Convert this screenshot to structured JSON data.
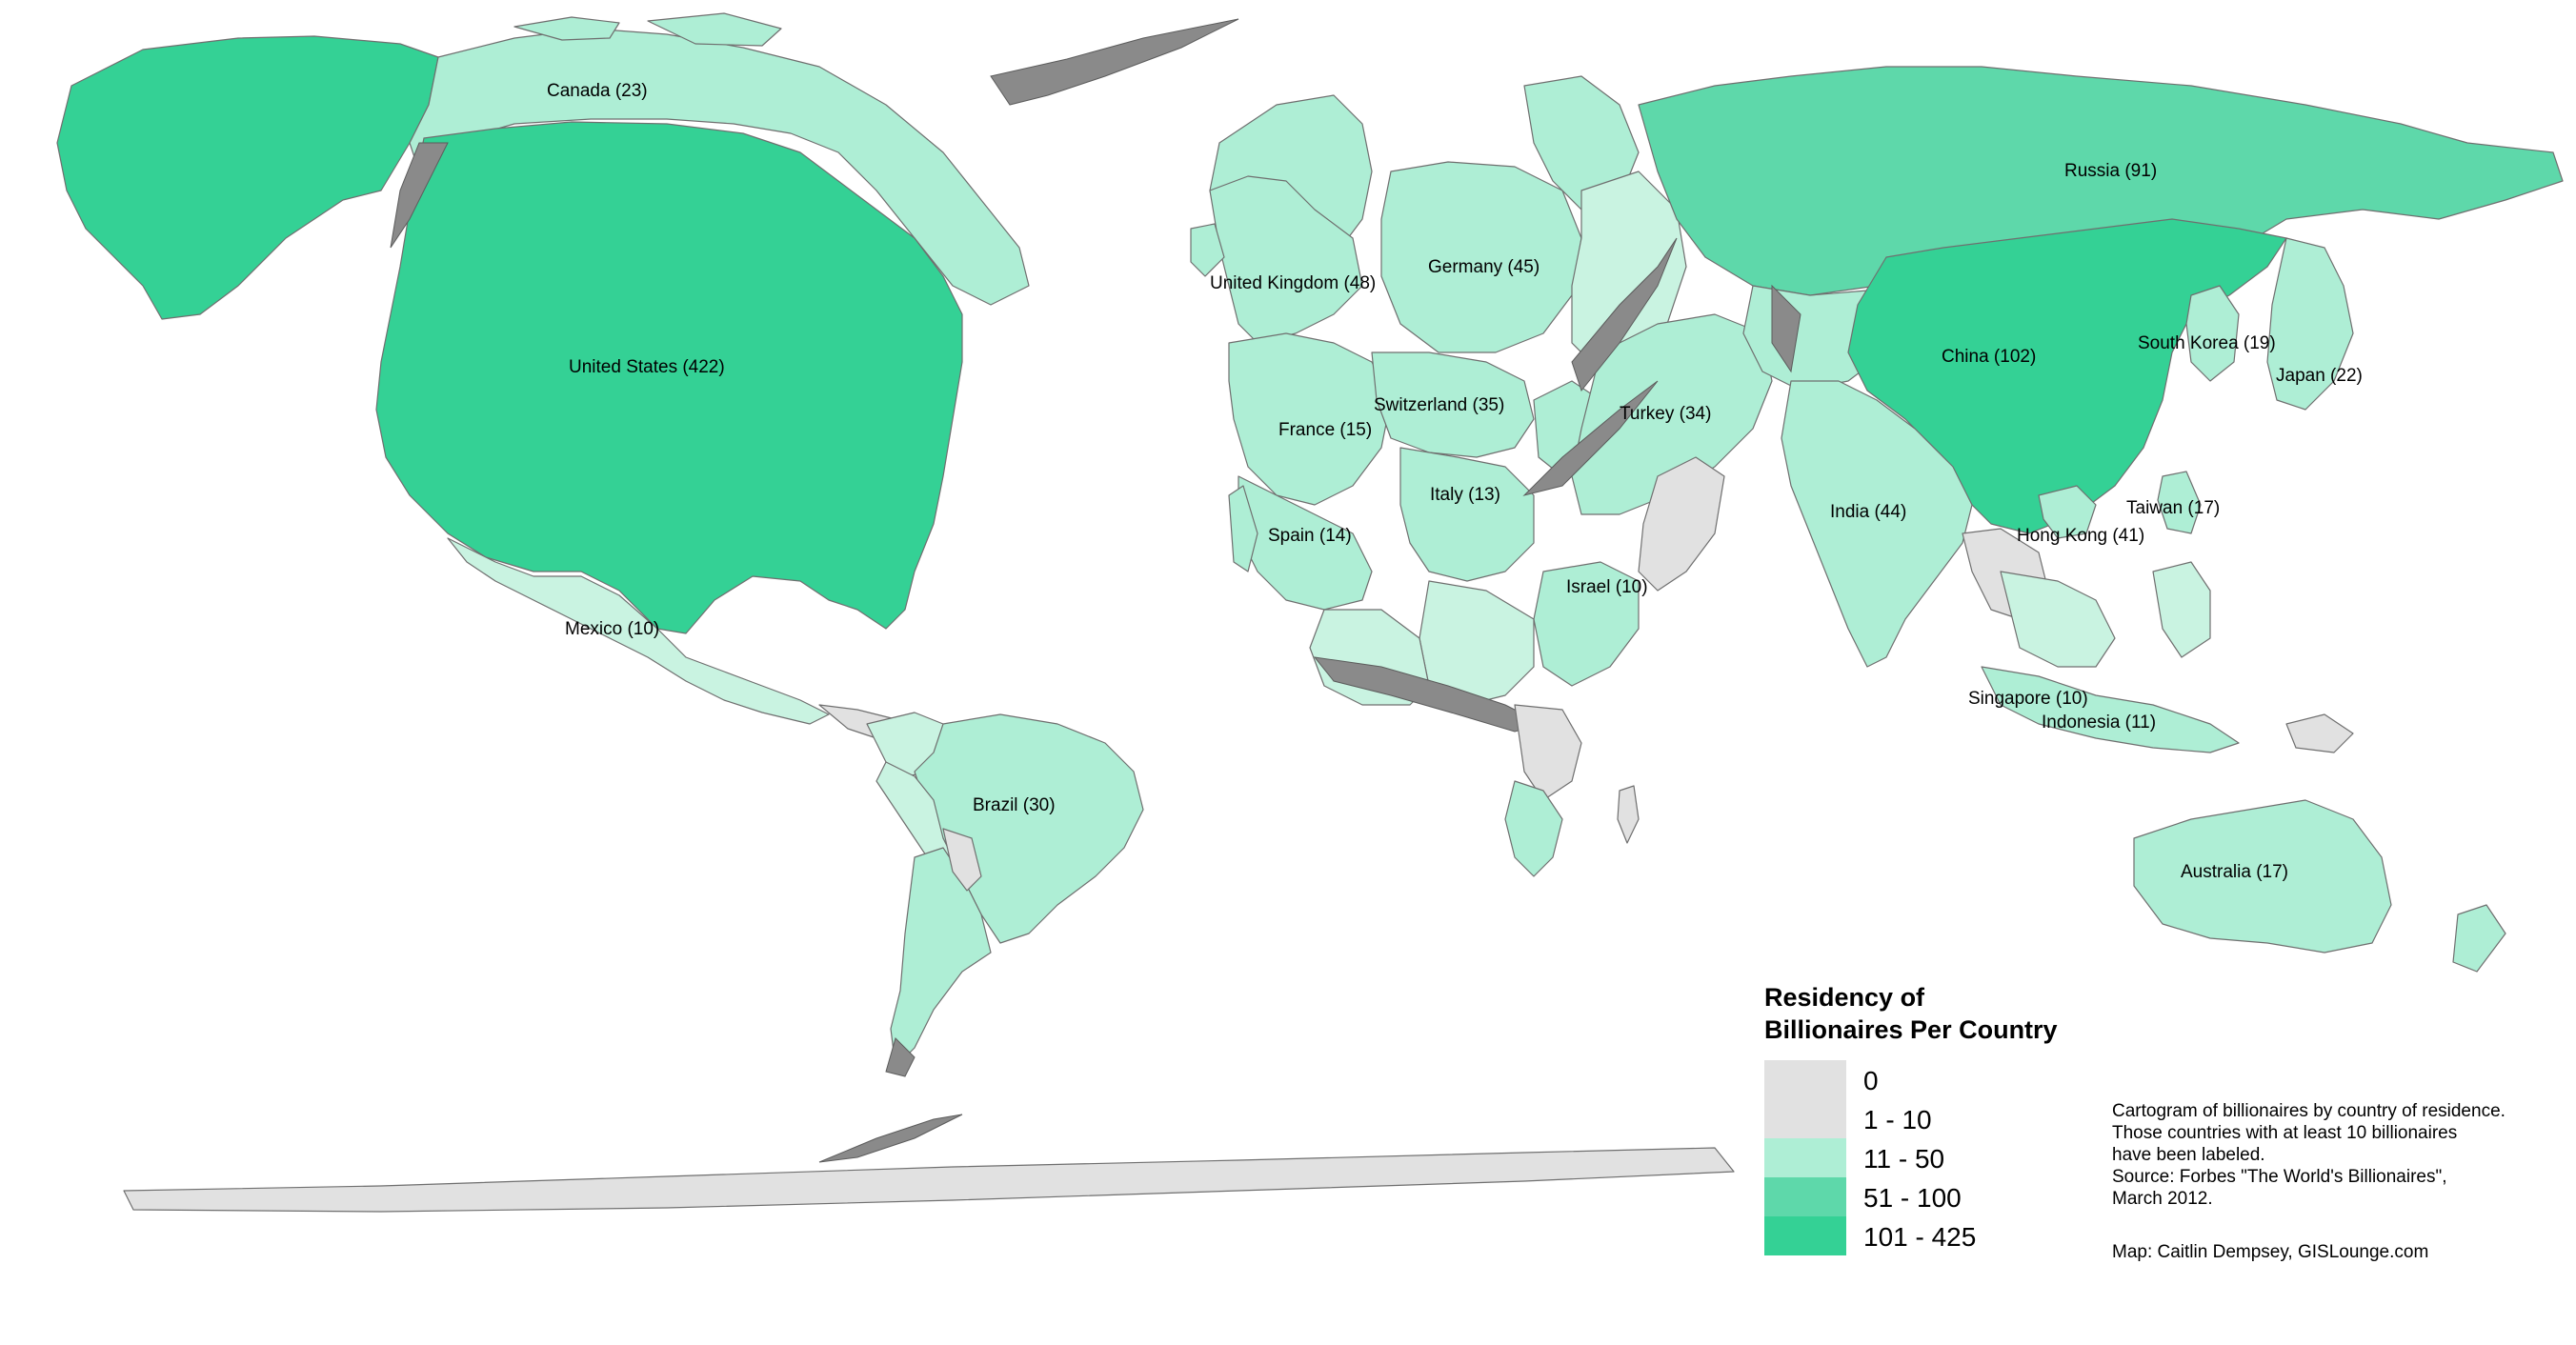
{
  "colors": {
    "cat_0": "#e1e1e1",
    "cat_1_10": "#e1e1e1",
    "cat_11_50": "#aeeed5",
    "cat_51_100": "#5ed8aa",
    "cat_101_425": "#34d195",
    "border": "#6f6f6f"
  },
  "labels": {
    "canada": "Canada (23)",
    "united_states": "United States (422)",
    "mexico": "Mexico (10)",
    "brazil": "Brazil (30)",
    "united_kingdom": "United Kingdom (48)",
    "germany": "Germany (45)",
    "france": "France (15)",
    "switzerland": "Switzerland (35)",
    "italy": "Italy (13)",
    "spain": "Spain (14)",
    "turkey": "Turkey (34)",
    "israel": "Israel (10)",
    "russia": "Russia (91)",
    "china": "China (102)",
    "india": "India (44)",
    "south_korea": "South Korea (19)",
    "japan": "Japan (22)",
    "taiwan": "Taiwan (17)",
    "hong_kong": "Hong Kong (41)",
    "singapore": "Singapore (10)",
    "indonesia": "Indonesia (11)",
    "australia": "Australia (17)"
  },
  "legend": {
    "title_line1": "Residency of",
    "title_line2": "Billionaires Per Country",
    "items": [
      {
        "label": "0",
        "color": "#e1e1e1"
      },
      {
        "label": "1 - 10",
        "color": "#e1e1e1"
      },
      {
        "label": "11 - 50",
        "color": "#aeeed5"
      },
      {
        "label": "51 - 100",
        "color": "#5ed8aa"
      },
      {
        "label": "101 - 425",
        "color": "#34d195"
      }
    ]
  },
  "notes": {
    "line1": "Cartogram of billionaires by country of residence.",
    "line2": "Those countries with at least 10 billionaires",
    "line3": "have been labeled.",
    "line4": "Source: Forbes  \"The World's Billionaires\",",
    "line5": "March 2012.",
    "credit": "Map: Caitlin Dempsey, GISLounge.com"
  }
}
